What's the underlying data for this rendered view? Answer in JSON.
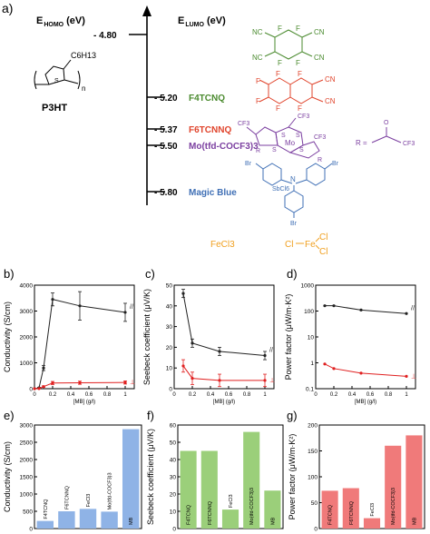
{
  "panel_a": {
    "label": "a)",
    "homo_axis_label": "E",
    "homo_axis_sub": "HOMO",
    "homo_axis_unit": "(eV)",
    "lumo_axis_label": "E",
    "lumo_axis_sub": "LUMO",
    "lumo_axis_unit": "(eV)",
    "p3ht_level": "- 4.80",
    "p3ht_name": "P3HT",
    "p3ht_sidechain": "C6H13",
    "p3ht_repeat": "n",
    "dopants": [
      {
        "level": "- 5.20",
        "name": "F4TCNQ",
        "color": "#4a8a2e"
      },
      {
        "level": "- 5.37",
        "name": "F6TCNNQ",
        "color": "#e0442c"
      },
      {
        "level": "- 5.50",
        "name": "Mo(tfd-COCF3)3",
        "color": "#7b3fa0"
      },
      {
        "level": "- 5.80",
        "name": "Magic Blue",
        "color": "#3f6fb5"
      }
    ],
    "fecl3_label": "FeCl3",
    "fecl3_color": "#f0a020",
    "fecl3_structure": {
      "left": "Cl",
      "center": "Fe",
      "right_top": "Cl",
      "right_bottom": "Cl"
    },
    "mo_r_group": "R =",
    "mo_cf3": "CF3",
    "mo_atoms": [
      "S",
      "Mo",
      "R"
    ],
    "magic_blue_atoms": [
      "Br",
      "N",
      "SbCl6"
    ],
    "f4tcnq_atoms": [
      "F",
      "NC",
      "CN"
    ],
    "f6_atoms": [
      "F",
      "NC",
      "CN"
    ]
  },
  "chart_data": [
    {
      "id": "b",
      "label": "b)",
      "type": "line",
      "xlabel": "[MB] (g/l)",
      "ylabel": "Conductivity (S/cm)",
      "xlim": [
        0,
        1.1
      ],
      "ylim": [
        0,
        4000
      ],
      "xticks": [
        0,
        0.2,
        0.4,
        0.6,
        0.8,
        1
      ],
      "xtick_labels": [
        "0",
        "0.2",
        "0.4",
        "0.6",
        "0.8",
        "1"
      ],
      "yticks": [
        0,
        1000,
        2000,
        3000,
        4000
      ],
      "ytick_labels": [
        "0",
        "1000",
        "2000",
        "3000",
        "4000"
      ],
      "series": [
        {
          "marker": "//",
          "color": "#222222",
          "x": [
            0,
            0.05,
            0.1,
            0.2,
            0.5,
            1.0
          ],
          "y": [
            0,
            30,
            800,
            3450,
            3200,
            2950
          ],
          "err": [
            0,
            20,
            100,
            250,
            550,
            350
          ]
        },
        {
          "marker": "⊥",
          "color": "#e02020",
          "x": [
            0,
            0.05,
            0.1,
            0.2,
            0.5,
            1.0
          ],
          "y": [
            0,
            5,
            80,
            220,
            230,
            240
          ],
          "err": [
            0,
            5,
            30,
            60,
            60,
            60
          ]
        }
      ]
    },
    {
      "id": "c",
      "label": "c)",
      "type": "line",
      "xlabel": "[MB] (g/l)",
      "ylabel": "Seebeck coefficient (μV/K)",
      "xlim": [
        0,
        1.1
      ],
      "ylim": [
        0,
        50
      ],
      "xticks": [
        0,
        0.2,
        0.4,
        0.6,
        0.8,
        1
      ],
      "xtick_labels": [
        "0",
        "0.2",
        "0.4",
        "0.6",
        "0.8",
        "1"
      ],
      "yticks": [
        0,
        10,
        20,
        30,
        40,
        50
      ],
      "ytick_labels": [
        "0",
        "10",
        "20",
        "30",
        "40",
        "50"
      ],
      "series": [
        {
          "marker": "//",
          "color": "#222222",
          "x": [
            0.1,
            0.2,
            0.5,
            1.0
          ],
          "y": [
            46,
            22,
            18,
            16
          ],
          "err": [
            2,
            2,
            2,
            2
          ]
        },
        {
          "marker": "⊥",
          "color": "#e02020",
          "x": [
            0.1,
            0.2,
            0.5,
            1.0
          ],
          "y": [
            11,
            5,
            4,
            4
          ],
          "err": [
            3,
            3,
            3,
            3
          ]
        }
      ]
    },
    {
      "id": "d",
      "label": "d)",
      "type": "line",
      "xlabel": "[MB] (g/l)",
      "ylabel": "Power factor (μW/m·K²)",
      "xlim": [
        0,
        1.1
      ],
      "ylim": [
        0.1,
        1000
      ],
      "yscale": "log",
      "xticks": [
        0,
        0.2,
        0.4,
        0.6,
        0.8,
        1
      ],
      "xtick_labels": [
        "0",
        "0.2",
        "0.4",
        "0.6",
        "0.8",
        "1"
      ],
      "yticks": [
        0.1,
        1,
        10,
        100,
        1000
      ],
      "ytick_labels": [
        "0.1",
        "1",
        "10",
        "100",
        "1000"
      ],
      "series": [
        {
          "marker": "//",
          "color": "#222222",
          "x": [
            0.1,
            0.2,
            0.5,
            1.0
          ],
          "y": [
            160,
            160,
            110,
            80
          ]
        },
        {
          "marker": "⊥",
          "color": "#e02020",
          "x": [
            0.1,
            0.2,
            0.5,
            1.0
          ],
          "y": [
            0.9,
            0.6,
            0.4,
            0.3
          ]
        }
      ]
    },
    {
      "id": "e",
      "label": "e)",
      "type": "bar",
      "ylabel": "Conductivity (S/cm)",
      "categories": [
        "F4TCNQ",
        "F6TCNNQ",
        "FeCl3",
        "Mo(tfd-COCF3)3",
        "MB"
      ],
      "values": [
        220,
        500,
        570,
        490,
        2880
      ],
      "ylim": [
        0,
        3000
      ],
      "yticks": [
        0,
        500,
        1000,
        1500,
        2000,
        2500,
        3000
      ],
      "ytick_labels": [
        "0",
        "500",
        "1000",
        "1500",
        "2000",
        "2500",
        "3000"
      ],
      "bar_color": "#8fb3e6"
    },
    {
      "id": "f",
      "label": "f)",
      "type": "bar",
      "ylabel": "Seebeck coefficient (μV/K)",
      "categories": [
        "F4TCNQ",
        "F6TCNNQ",
        "FeCl3",
        "Mo(tfd-COCF3)3",
        "MB"
      ],
      "values": [
        45,
        45,
        11,
        56,
        22
      ],
      "ylim": [
        0,
        60
      ],
      "yticks": [
        0,
        10,
        20,
        30,
        40,
        50,
        60
      ],
      "ytick_labels": [
        "0",
        "10",
        "20",
        "30",
        "40",
        "50",
        "60"
      ],
      "bar_color": "#9bcf7a"
    },
    {
      "id": "g",
      "label": "g)",
      "type": "bar",
      "ylabel": "Power factor (μW/m·K²)",
      "categories": [
        "F4TCNQ",
        "F6TCNNQ",
        "FeCl3",
        "Mo(tfd-COCF3)3",
        "MB"
      ],
      "values": [
        73,
        78,
        20,
        160,
        180
      ],
      "ylim": [
        0,
        200
      ],
      "yticks": [
        0,
        50,
        100,
        150,
        200
      ],
      "ytick_labels": [
        "0",
        "50",
        "100",
        "150",
        "200"
      ],
      "bar_color": "#f07a7a"
    }
  ]
}
